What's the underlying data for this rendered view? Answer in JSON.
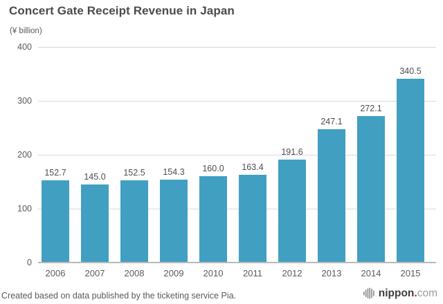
{
  "header": {
    "title": "Concert Gate Receipt Revenue in Japan",
    "unit_label": "(¥ billion)"
  },
  "chart_data": {
    "type": "bar",
    "categories": [
      "2006",
      "2007",
      "2008",
      "2009",
      "2010",
      "2011",
      "2012",
      "2013",
      "2014",
      "2015"
    ],
    "values": [
      152.7,
      145.0,
      152.5,
      154.3,
      160.0,
      163.4,
      191.6,
      247.1,
      272.1,
      340.5
    ],
    "value_labels": [
      "152.7",
      "145.0",
      "152.5",
      "154.3",
      "160.0",
      "163.4",
      "191.6",
      "247.1",
      "272.1",
      "340.5"
    ],
    "title": "Concert Gate Receipt Revenue in Japan",
    "xlabel": "",
    "ylabel": "(¥ billion)",
    "ylim": [
      0,
      400
    ],
    "yticks": [
      0,
      100,
      200,
      300,
      400
    ],
    "grid": true,
    "legend": false,
    "bar_color": "#419fc2"
  },
  "footer": {
    "source_note": "Created based on data published by the ticketing service Pia.",
    "logo": {
      "icon": "equalizer-globe-icon",
      "name": "nippon",
      "dot": ".",
      "tld": "com"
    }
  },
  "colors": {
    "background": "#ffffff",
    "bar": "#419fc2",
    "title_text": "#4a4a4a",
    "value_text": "#4d4d4d",
    "axis_text": "#595959",
    "gridline": "#d9d9d9",
    "baseline": "#b8b8b8",
    "logo_dark": "#3c3c3c",
    "logo_gray": "#9a9a9a",
    "logo_red": "#e60012"
  }
}
